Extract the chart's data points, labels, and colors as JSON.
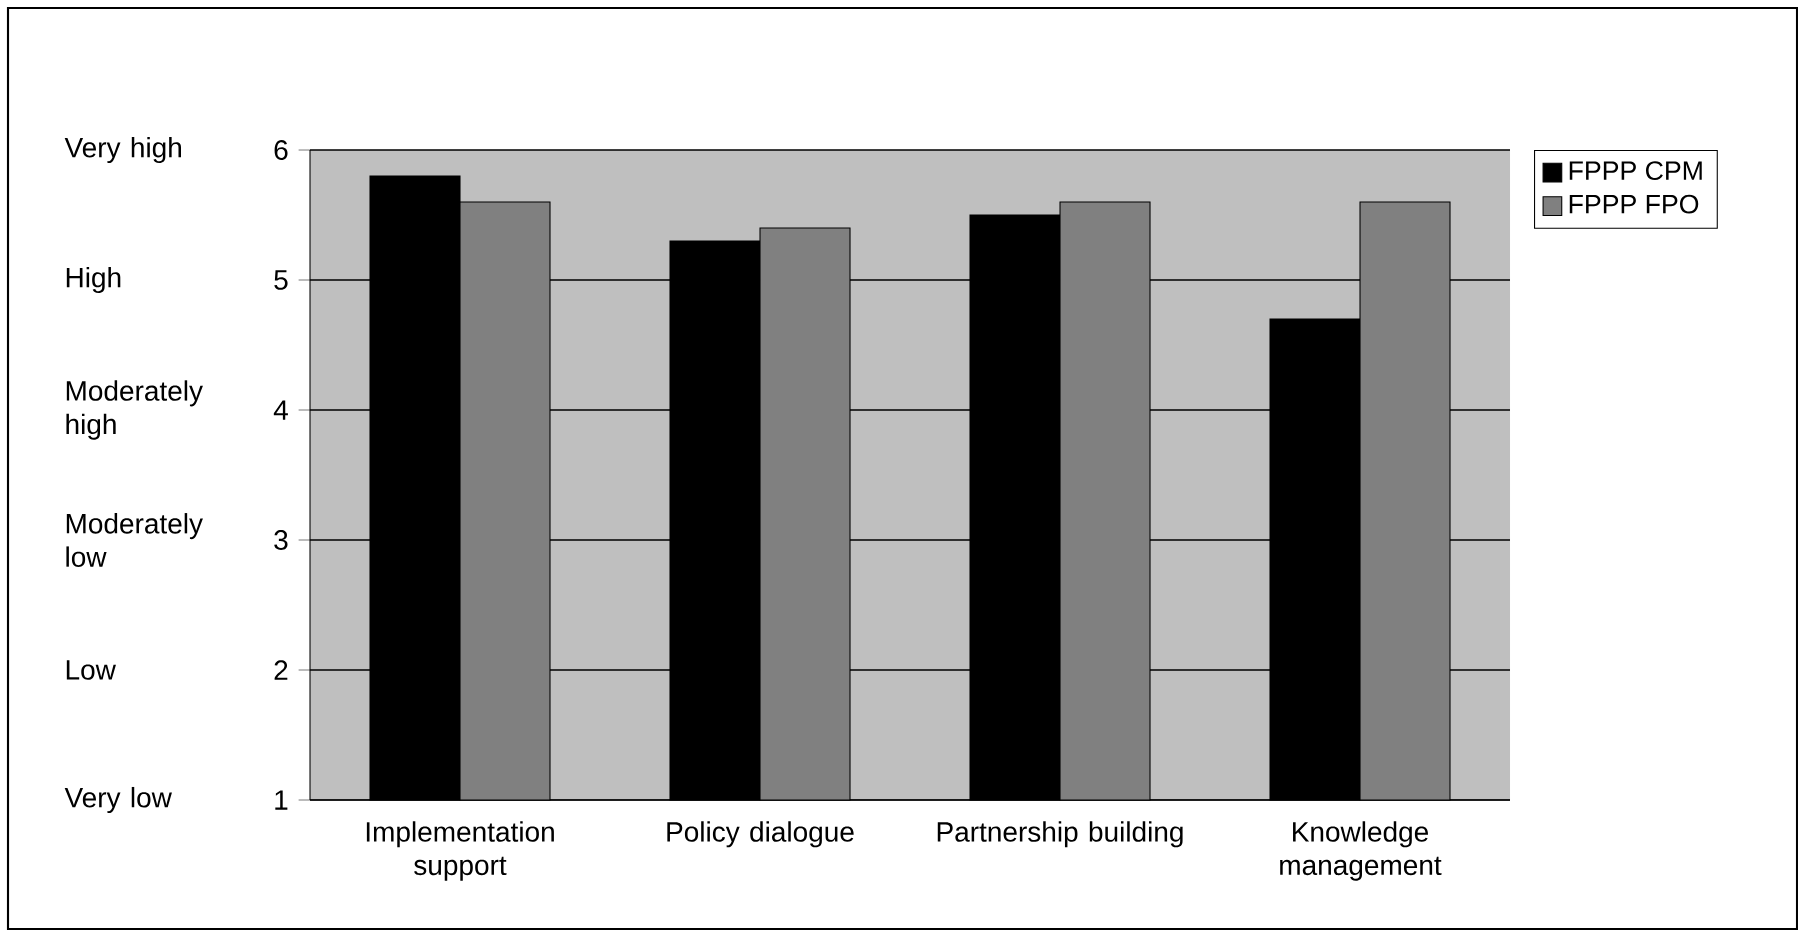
{
  "chart_data": {
    "type": "bar",
    "categories": [
      "Implementation support",
      "Policy dialogue",
      "Partnership building",
      "Knowledge management"
    ],
    "series": [
      {
        "name": "FPPP CPM",
        "color": "#000000",
        "values": [
          5.8,
          5.3,
          5.5,
          4.7
        ]
      },
      {
        "name": "FPPP FPO",
        "color": "#808080",
        "values": [
          5.6,
          5.4,
          5.6,
          5.6
        ]
      }
    ],
    "ylim": [
      1,
      6
    ],
    "yticks": [
      1,
      2,
      3,
      4,
      5,
      6
    ],
    "grid": "y",
    "legend": "top right",
    "annotations": [
      "Very high",
      "High",
      "Moderately high",
      "Moderately low",
      "Low",
      "Very low"
    ]
  }
}
